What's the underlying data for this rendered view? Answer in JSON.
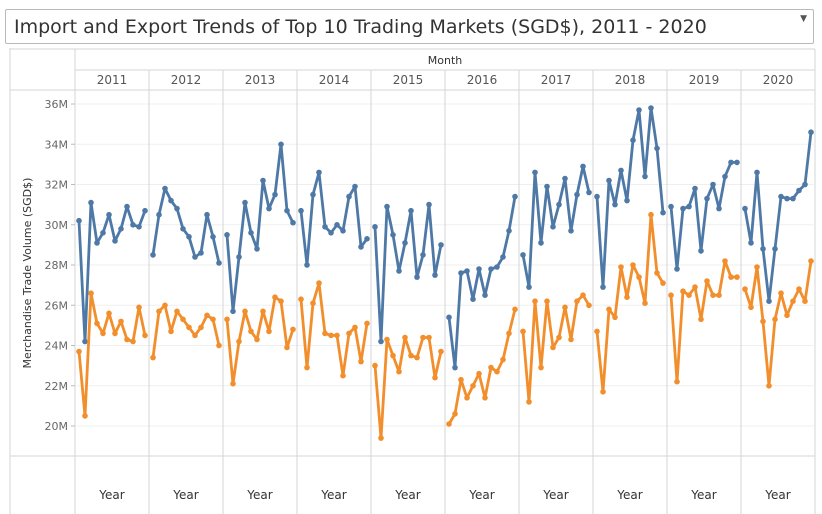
{
  "title": "Import and Export Trends of Top 10 Trading Markets (SGD$), 2011 - 2020",
  "dropdown_icon": "chevron-down-icon",
  "chart_data": {
    "type": "line",
    "column_header": "Month",
    "years": [
      "2011",
      "2012",
      "2013",
      "2014",
      "2015",
      "2016",
      "2017",
      "2018",
      "2019",
      "2020"
    ],
    "bottom_labels": [
      "Year",
      "Year",
      "Year",
      "Year",
      "Year",
      "Year",
      "Year",
      "Year",
      "Year",
      "Year"
    ],
    "ylabel": "Merchandise Trade Volume (SGD$)",
    "ylim": [
      18,
      37
    ],
    "yticks": [
      20,
      22,
      24,
      26,
      28,
      30,
      32,
      34,
      36
    ],
    "ytick_labels": [
      "20M",
      "22M",
      "24M",
      "26M",
      "28M",
      "30M",
      "32M",
      "34M",
      "36M"
    ],
    "colors": {
      "imports": "#4e79a7",
      "exports": "#f28e2b"
    },
    "series": [
      {
        "values": [
          [
            30.2,
            24.2,
            31.1,
            29.1,
            29.6,
            30.5,
            29.2,
            29.8,
            30.9,
            30.0,
            29.9,
            30.7
          ],
          [
            28.5,
            30.5,
            31.8,
            31.2,
            30.8,
            29.8,
            29.4,
            28.4,
            28.6,
            30.5,
            29.4,
            28.1
          ],
          [
            29.5,
            25.7,
            28.4,
            31.1,
            29.6,
            28.8,
            32.2,
            30.8,
            31.5,
            34.0,
            30.7,
            30.1
          ],
          [
            30.7,
            28.0,
            31.5,
            32.6,
            29.9,
            29.6,
            30.0,
            29.7,
            31.4,
            31.9,
            28.9,
            29.3
          ],
          [
            29.9,
            24.2,
            30.9,
            29.5,
            27.7,
            29.1,
            30.7,
            27.4,
            28.5,
            31.0,
            27.5,
            29.0
          ],
          [
            25.4,
            22.9,
            27.6,
            27.7,
            26.3,
            27.8,
            26.5,
            27.8,
            27.9,
            28.4,
            29.7,
            31.4
          ],
          [
            28.5,
            26.9,
            32.6,
            29.1,
            31.9,
            29.9,
            31.0,
            32.3,
            29.7,
            31.5,
            32.9,
            31.6
          ],
          [
            31.4,
            26.9,
            32.2,
            31.0,
            32.7,
            31.2,
            34.2,
            35.7,
            32.4,
            35.8,
            33.8,
            30.6
          ],
          [
            30.9,
            27.8,
            30.8,
            30.9,
            31.8,
            28.7,
            31.3,
            32.0,
            30.8,
            32.4,
            33.1,
            33.1
          ],
          [
            30.8,
            29.1,
            32.6,
            28.8,
            26.2,
            28.8,
            31.4,
            31.3,
            31.3,
            31.7,
            32.0,
            34.6
          ]
        ]
      },
      {
        "values": [
          [
            23.7,
            20.5,
            26.6,
            25.1,
            24.6,
            25.6,
            24.6,
            25.2,
            24.3,
            24.2,
            25.9,
            24.5
          ],
          [
            23.4,
            25.7,
            26.0,
            24.7,
            25.7,
            25.3,
            24.9,
            24.5,
            24.9,
            25.5,
            25.3,
            24.0
          ],
          [
            25.3,
            22.1,
            24.2,
            25.7,
            24.7,
            24.3,
            25.7,
            24.7,
            26.4,
            26.2,
            23.9,
            24.8
          ],
          [
            26.3,
            22.9,
            26.1,
            27.1,
            24.6,
            24.5,
            24.5,
            22.5,
            24.6,
            24.9,
            23.2,
            25.1
          ],
          [
            23.0,
            19.4,
            24.3,
            23.5,
            22.7,
            24.4,
            23.5,
            23.4,
            24.4,
            24.4,
            22.4,
            23.7
          ],
          [
            20.1,
            20.6,
            22.3,
            21.4,
            22.0,
            22.6,
            21.4,
            22.9,
            22.7,
            23.3,
            24.6,
            25.8
          ],
          [
            24.7,
            21.2,
            26.2,
            22.9,
            26.2,
            23.9,
            24.4,
            25.9,
            24.3,
            26.2,
            26.5,
            26.0
          ],
          [
            24.7,
            21.7,
            25.8,
            25.4,
            27.9,
            26.4,
            28.0,
            27.4,
            26.1,
            30.5,
            27.6,
            27.1
          ],
          [
            26.5,
            22.2,
            26.7,
            26.5,
            26.9,
            25.3,
            27.2,
            26.5,
            26.5,
            28.2,
            27.4,
            27.4
          ],
          [
            26.8,
            25.9,
            27.9,
            25.2,
            22.0,
            25.3,
            26.6,
            25.5,
            26.2,
            26.8,
            26.2,
            28.2
          ]
        ]
      }
    ]
  }
}
